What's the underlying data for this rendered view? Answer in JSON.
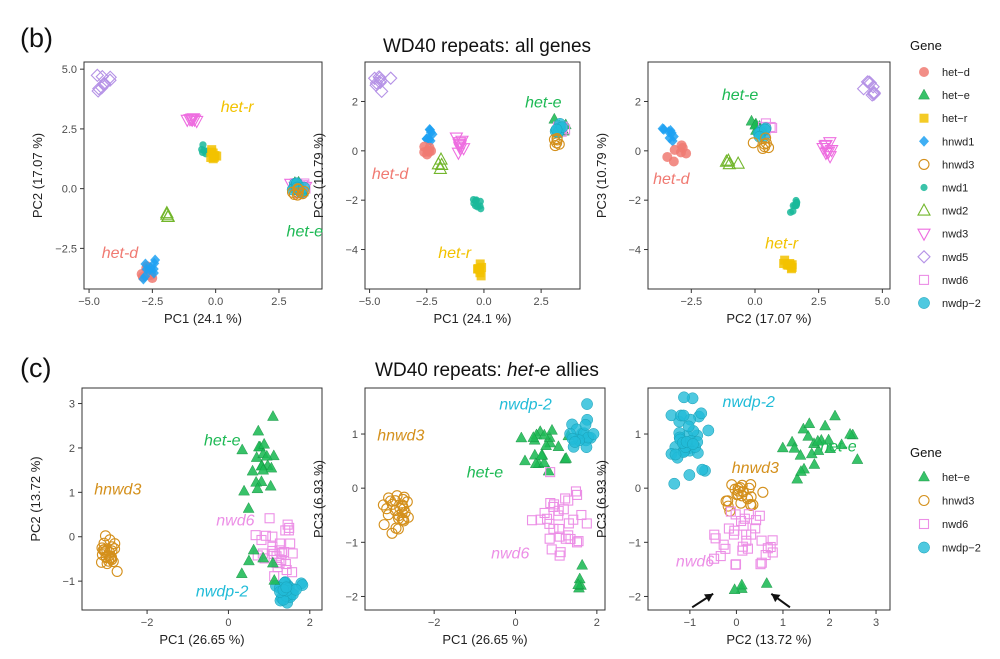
{
  "colors": {
    "het-d": "#F07A72",
    "het-e": "#1DB954",
    "het-r": "#F2C200",
    "hnwd1": "#1DA1F2",
    "hnwd3": "#D4901C",
    "nwd1": "#19B99A",
    "nwd2": "#72B62B",
    "nwd3": "#EE6DE0",
    "nwd5": "#B592E6",
    "nwd6": "#EC8FE6",
    "nwdp-2": "#22BCD8"
  },
  "figure": {
    "panel_b": "(b)",
    "panel_c": "(c)",
    "title_b": "WD40 repeats: all genes",
    "title_c_prefix": "WD40 repeats: ",
    "title_c_italic": "het-e",
    "title_c_suffix": " allies",
    "legend_b_title": "Gene",
    "legend_c_title": "Gene",
    "legend_b": [
      {
        "label": "het−d",
        "gene": "het-d",
        "shape": "circle"
      },
      {
        "label": "het−e",
        "gene": "het-e",
        "shape": "triangle"
      },
      {
        "label": "het−r",
        "gene": "het-r",
        "shape": "square"
      },
      {
        "label": "hnwd1",
        "gene": "hnwd1",
        "shape": "diamond"
      },
      {
        "label": "hnwd3",
        "gene": "hnwd3",
        "shape": "circle-open"
      },
      {
        "label": "nwd1",
        "gene": "nwd1",
        "shape": "circle-small"
      },
      {
        "label": "nwd2",
        "gene": "nwd2",
        "shape": "triangle-open"
      },
      {
        "label": "nwd3",
        "gene": "nwd3",
        "shape": "triangle-down-open"
      },
      {
        "label": "nwd5",
        "gene": "nwd5",
        "shape": "diamond-open"
      },
      {
        "label": "nwd6",
        "gene": "nwd6",
        "shape": "square-open"
      },
      {
        "label": "nwdp−2",
        "gene": "nwdp-2",
        "shape": "circle-big"
      }
    ],
    "legend_c": [
      {
        "label": "het−e",
        "gene": "het-e",
        "shape": "triangle"
      },
      {
        "label": "hnwd3",
        "gene": "hnwd3",
        "shape": "circle-open"
      },
      {
        "label": "nwd6",
        "gene": "nwd6",
        "shape": "square-open"
      },
      {
        "label": "nwdp−2",
        "gene": "nwdp-2",
        "shape": "circle-big"
      }
    ]
  },
  "chart_data": [
    {
      "type": "scatter",
      "id": "b1",
      "xlabel": "PC1 (24.1 %)",
      "ylabel": "PC2 (17.07 %)",
      "xlim": [
        -5.2,
        4.2
      ],
      "ylim": [
        -4.2,
        5.3
      ],
      "xticks": [
        -5.0,
        -2.5,
        0.0,
        2.5
      ],
      "yticks": [
        -2.5,
        0.0,
        2.5,
        5.0
      ],
      "xtick_labels": [
        "−5.0",
        "−2.5",
        "0.0",
        "2.5"
      ],
      "ytick_labels": [
        "−2.5",
        "0.0",
        "2.5",
        "5.0"
      ],
      "clusters": [
        {
          "gene": "nwd5",
          "shape": "diamond-open",
          "cx": -4.4,
          "cy": 4.4,
          "sx": 0.35,
          "sy": 0.45,
          "n": 9
        },
        {
          "gene": "nwd3",
          "shape": "triangle-down-open",
          "cx": -0.95,
          "cy": 2.9,
          "sx": 0.2,
          "sy": 0.1,
          "n": 8
        },
        {
          "gene": "nwd1",
          "shape": "circle-small",
          "cx": -0.45,
          "cy": 1.55,
          "sx": 0.12,
          "sy": 0.15,
          "n": 6
        },
        {
          "gene": "het-r",
          "shape": "square",
          "cx": -0.05,
          "cy": 1.35,
          "sx": 0.12,
          "sy": 0.2,
          "n": 8
        },
        {
          "gene": "nwd2",
          "shape": "triangle-open",
          "cx": -1.95,
          "cy": -1.05,
          "sx": 0.08,
          "sy": 0.22,
          "n": 4
        },
        {
          "gene": "het-d",
          "shape": "circle",
          "cx": -2.65,
          "cy": -3.5,
          "sx": 0.18,
          "sy": 0.2,
          "n": 9
        },
        {
          "gene": "hnwd1",
          "shape": "diamond",
          "cx": -2.6,
          "cy": -3.25,
          "sx": 0.2,
          "sy": 0.35,
          "n": 10
        },
        {
          "gene": "nwd3",
          "shape": "triangle-down-open",
          "cx": 3.35,
          "cy": 0.1,
          "sx": 0.25,
          "sy": 0.25,
          "n": 8
        },
        {
          "gene": "nwd6",
          "shape": "square-open",
          "cx": 3.4,
          "cy": 0.0,
          "sx": 0.22,
          "sy": 0.25,
          "n": 8
        },
        {
          "gene": "het-e",
          "shape": "triangle",
          "cx": 3.3,
          "cy": 0.05,
          "sx": 0.22,
          "sy": 0.25,
          "n": 8
        },
        {
          "gene": "nwdp-2",
          "shape": "circle-big",
          "cx": 3.2,
          "cy": 0.1,
          "sx": 0.25,
          "sy": 0.25,
          "n": 8
        },
        {
          "gene": "hnwd3",
          "shape": "circle-open",
          "cx": 3.2,
          "cy": -0.2,
          "sx": 0.18,
          "sy": 0.15,
          "n": 8
        }
      ],
      "annotations": [
        {
          "text": "het-r",
          "gene": "het-r",
          "x": 0.2,
          "y": 3.2
        },
        {
          "text": "het-e",
          "gene": "het-e",
          "x": 2.8,
          "y": -2.0
        },
        {
          "text": "het-d",
          "gene": "het-d",
          "x": -4.5,
          "y": -2.9
        }
      ]
    },
    {
      "type": "scatter",
      "id": "b2",
      "xlabel": "PC1 (24.1 %)",
      "ylabel": "PC3 (10.79 %)",
      "xlim": [
        -5.2,
        4.2
      ],
      "ylim": [
        -5.6,
        3.6
      ],
      "xticks": [
        -5.0,
        -2.5,
        0.0,
        2.5
      ],
      "yticks": [
        -4,
        -2,
        0,
        2
      ],
      "xtick_labels": [
        "−5.0",
        "−2.5",
        "0.0",
        "2.5"
      ],
      "ytick_labels": [
        "−4",
        "−2",
        "0",
        "2"
      ],
      "clusters": [
        {
          "gene": "nwd5",
          "shape": "diamond-open",
          "cx": -4.5,
          "cy": 2.7,
          "sx": 0.3,
          "sy": 0.3,
          "n": 9
        },
        {
          "gene": "hnwd1",
          "shape": "diamond",
          "cx": -2.4,
          "cy": 0.7,
          "sx": 0.2,
          "sy": 0.35,
          "n": 8
        },
        {
          "gene": "het-d",
          "shape": "circle",
          "cx": -2.4,
          "cy": 0.05,
          "sx": 0.2,
          "sy": 0.15,
          "n": 7
        },
        {
          "gene": "nwd2",
          "shape": "triangle-open",
          "cx": -1.9,
          "cy": -0.6,
          "sx": 0.15,
          "sy": 0.15,
          "n": 4
        },
        {
          "gene": "nwd3",
          "shape": "triangle-down-open",
          "cx": -1.0,
          "cy": 0.3,
          "sx": 0.25,
          "sy": 0.35,
          "n": 9
        },
        {
          "gene": "nwd1",
          "shape": "circle-small",
          "cx": -0.3,
          "cy": -2.2,
          "sx": 0.15,
          "sy": 0.25,
          "n": 9
        },
        {
          "gene": "het-r",
          "shape": "square",
          "cx": -0.2,
          "cy": -4.8,
          "sx": 0.12,
          "sy": 0.2,
          "n": 8
        },
        {
          "gene": "het-e",
          "shape": "triangle",
          "cx": 3.3,
          "cy": 1.0,
          "sx": 0.2,
          "sy": 0.2,
          "n": 7
        },
        {
          "gene": "nwd6",
          "shape": "square-open",
          "cx": 3.5,
          "cy": 0.9,
          "sx": 0.2,
          "sy": 0.2,
          "n": 7
        },
        {
          "gene": "nwdp-2",
          "shape": "circle-big",
          "cx": 3.3,
          "cy": 0.8,
          "sx": 0.2,
          "sy": 0.2,
          "n": 7
        },
        {
          "gene": "hnwd3",
          "shape": "circle-open",
          "cx": 3.2,
          "cy": 0.4,
          "sx": 0.15,
          "sy": 0.15,
          "n": 6
        }
      ],
      "annotations": [
        {
          "text": "het-e",
          "gene": "het-e",
          "x": 1.8,
          "y": 1.75
        },
        {
          "text": "het-d",
          "gene": "het-d",
          "x": -4.9,
          "y": -1.15
        },
        {
          "text": "het-r",
          "gene": "het-r",
          "x": -2.0,
          "y": -4.35
        }
      ]
    },
    {
      "type": "scatter",
      "id": "b3",
      "xlabel": "PC2 (17.07 %)",
      "ylabel": "PC3 (10.79 %)",
      "xlim": [
        -4.2,
        5.3
      ],
      "ylim": [
        -5.6,
        3.6
      ],
      "xticks": [
        -2.5,
        0.0,
        2.5,
        5.0
      ],
      "yticks": [
        -4,
        -2,
        0,
        2
      ],
      "xtick_labels": [
        "−2.5",
        "0.0",
        "2.5",
        "5.0"
      ],
      "ytick_labels": [
        "−4",
        "−2",
        "0",
        "2"
      ],
      "clusters": [
        {
          "gene": "nwd5",
          "shape": "diamond-open",
          "cx": 4.5,
          "cy": 2.5,
          "sx": 0.3,
          "sy": 0.3,
          "n": 9
        },
        {
          "gene": "nwd3",
          "shape": "triangle-down-open",
          "cx": 2.85,
          "cy": 0.0,
          "sx": 0.15,
          "sy": 0.35,
          "n": 9
        },
        {
          "gene": "hnwd1",
          "shape": "diamond",
          "cx": -3.4,
          "cy": 0.8,
          "sx": 0.2,
          "sy": 0.3,
          "n": 8
        },
        {
          "gene": "het-d",
          "shape": "circle",
          "cx": -3.1,
          "cy": 0.0,
          "sx": 0.35,
          "sy": 0.3,
          "n": 7
        },
        {
          "gene": "nwd2",
          "shape": "triangle-open",
          "cx": -1.0,
          "cy": -0.55,
          "sx": 0.3,
          "sy": 0.1,
          "n": 4
        },
        {
          "gene": "nwd1",
          "shape": "circle-small",
          "cx": 1.6,
          "cy": -2.2,
          "sx": 0.15,
          "sy": 0.25,
          "n": 9
        },
        {
          "gene": "het-r",
          "shape": "square",
          "cx": 1.3,
          "cy": -4.6,
          "sx": 0.3,
          "sy": 0.15,
          "n": 9
        },
        {
          "gene": "het-e",
          "shape": "triangle",
          "cx": 0.1,
          "cy": 1.0,
          "sx": 0.2,
          "sy": 0.2,
          "n": 7
        },
        {
          "gene": "nwd6",
          "shape": "square-open",
          "cx": 0.4,
          "cy": 0.9,
          "sx": 0.2,
          "sy": 0.2,
          "n": 7
        },
        {
          "gene": "nwdp-2",
          "shape": "circle-big",
          "cx": 0.3,
          "cy": 0.8,
          "sx": 0.2,
          "sy": 0.2,
          "n": 7
        },
        {
          "gene": "hnwd3",
          "shape": "circle-open",
          "cx": 0.3,
          "cy": 0.3,
          "sx": 0.25,
          "sy": 0.2,
          "n": 7
        }
      ],
      "annotations": [
        {
          "text": "het-e",
          "gene": "het-e",
          "x": -1.3,
          "y": 2.05
        },
        {
          "text": "het-d",
          "gene": "het-d",
          "x": -4.0,
          "y": -1.35
        },
        {
          "text": "het-r",
          "gene": "het-r",
          "x": 0.4,
          "y": -3.95
        }
      ]
    },
    {
      "type": "scatter",
      "id": "c1",
      "xlabel": "PC1 (26.65 %)",
      "ylabel": "PC2 (13.72 %)",
      "xlim": [
        -3.6,
        2.3
      ],
      "ylim": [
        -1.65,
        3.35
      ],
      "xticks": [
        -2,
        0,
        2
      ],
      "yticks": [
        -1,
        0,
        1,
        2,
        3
      ],
      "xtick_labels": [
        "−2",
        "0",
        "2"
      ],
      "ytick_labels": [
        "−1",
        "0",
        "1",
        "2",
        "3"
      ],
      "clusters": [
        {
          "gene": "hnwd3",
          "shape": "circle-open",
          "cx": -2.9,
          "cy": -0.35,
          "sx": 0.2,
          "sy": 0.3,
          "n": 26
        },
        {
          "gene": "het-e",
          "shape": "triangle",
          "cx": 0.8,
          "cy": 1.5,
          "sx": 0.35,
          "sy": 0.8,
          "n": 22
        },
        {
          "gene": "nwd6",
          "shape": "square-open",
          "cx": 1.2,
          "cy": -0.2,
          "sx": 0.4,
          "sy": 0.55,
          "n": 30
        },
        {
          "gene": "nwdp-2",
          "shape": "circle-big",
          "cx": 1.5,
          "cy": -1.2,
          "sx": 0.25,
          "sy": 0.2,
          "n": 26
        },
        {
          "gene": "het-e",
          "shape": "triangle",
          "cx": 0.9,
          "cy": -0.6,
          "sx": 0.4,
          "sy": 0.3,
          "n": 6
        }
      ],
      "annotations": [
        {
          "text": "hnwd3",
          "gene": "hnwd3",
          "x": -3.3,
          "y": 0.95
        },
        {
          "text": "het-e",
          "gene": "het-e",
          "x": -0.6,
          "y": 2.05
        },
        {
          "text": "nwd6",
          "gene": "nwd6",
          "x": -0.3,
          "y": 0.25
        },
        {
          "text": "nwdp-2",
          "gene": "nwdp-2",
          "x": -0.8,
          "y": -1.35
        }
      ]
    },
    {
      "type": "scatter",
      "id": "c2",
      "xlabel": "PC1 (26.65 %)",
      "ylabel": "PC3 (6.93 %)",
      "xlim": [
        -3.7,
        2.2
      ],
      "ylim": [
        -2.25,
        1.85
      ],
      "xticks": [
        -2,
        0,
        2
      ],
      "yticks": [
        -2,
        -1,
        0,
        1
      ],
      "xtick_labels": [
        "−2",
        "0",
        "2"
      ],
      "ytick_labels": [
        "−2",
        "−1",
        "0",
        "1"
      ],
      "clusters": [
        {
          "gene": "hnwd3",
          "shape": "circle-open",
          "cx": -2.9,
          "cy": -0.45,
          "sx": 0.28,
          "sy": 0.3,
          "n": 28
        },
        {
          "gene": "het-e",
          "shape": "triangle",
          "cx": 0.7,
          "cy": 0.75,
          "sx": 0.5,
          "sy": 0.45,
          "n": 22
        },
        {
          "gene": "nwdp-2",
          "shape": "circle-big",
          "cx": 1.6,
          "cy": 1.0,
          "sx": 0.25,
          "sy": 0.45,
          "n": 18
        },
        {
          "gene": "nwd6",
          "shape": "square-open",
          "cx": 1.1,
          "cy": -0.6,
          "sx": 0.5,
          "sy": 0.6,
          "n": 32
        },
        {
          "gene": "het-e",
          "shape": "triangle",
          "cx": 1.6,
          "cy": -1.6,
          "sx": 0.15,
          "sy": 0.25,
          "n": 5
        }
      ],
      "annotations": [
        {
          "text": "hnwd3",
          "gene": "hnwd3",
          "x": -3.4,
          "y": 0.88
        },
        {
          "text": "nwdp-2",
          "gene": "nwdp-2",
          "x": -0.4,
          "y": 1.45
        },
        {
          "text": "het-e",
          "gene": "het-e",
          "x": -1.2,
          "y": 0.2
        },
        {
          "text": "nwd6",
          "gene": "nwd6",
          "x": -0.6,
          "y": -1.3
        }
      ]
    },
    {
      "type": "scatter",
      "id": "c3",
      "xlabel": "PC2 (13.72 %)",
      "ylabel": "PC3 (6.93 %)",
      "xlim": [
        -1.9,
        3.3
      ],
      "ylim": [
        -2.25,
        1.85
      ],
      "xticks": [
        -1,
        0,
        1,
        2,
        3
      ],
      "yticks": [
        -2,
        -1,
        0,
        1
      ],
      "xtick_labels": [
        "−1",
        "0",
        "1",
        "2",
        "3"
      ],
      "ytick_labels": [
        "−2",
        "−1",
        "0",
        "1"
      ],
      "clusters": [
        {
          "gene": "nwdp-2",
          "shape": "circle-big",
          "cx": -1.1,
          "cy": 0.9,
          "sx": 0.35,
          "sy": 0.55,
          "n": 40
        },
        {
          "gene": "het-e",
          "shape": "triangle",
          "cx": 1.7,
          "cy": 0.8,
          "sx": 0.65,
          "sy": 0.45,
          "n": 24
        },
        {
          "gene": "hnwd3",
          "shape": "circle-open",
          "cx": 0.1,
          "cy": -0.15,
          "sx": 0.35,
          "sy": 0.28,
          "n": 24
        },
        {
          "gene": "nwd6",
          "shape": "square-open",
          "cx": 0.2,
          "cy": -0.9,
          "sx": 0.45,
          "sy": 0.5,
          "n": 34
        },
        {
          "gene": "het-e",
          "shape": "triangle",
          "cx": 0.3,
          "cy": -1.8,
          "sx": 0.35,
          "sy": 0.1,
          "n": 4
        }
      ],
      "annotations": [
        {
          "text": "nwdp-2",
          "gene": "nwdp-2",
          "x": -0.3,
          "y": 1.5
        },
        {
          "text": "het-e",
          "gene": "het-e",
          "x": 1.8,
          "y": 0.68
        },
        {
          "text": "hnwd3",
          "gene": "hnwd3",
          "x": -0.1,
          "y": 0.28
        },
        {
          "text": "nwd6",
          "gene": "nwd6",
          "x": -1.3,
          "y": -1.45
        }
      ],
      "arrows": [
        {
          "from": [
            -0.95,
            -2.2
          ],
          "to": [
            -0.5,
            -1.95
          ]
        },
        {
          "from": [
            1.15,
            -2.2
          ],
          "to": [
            0.75,
            -1.95
          ]
        }
      ]
    }
  ]
}
